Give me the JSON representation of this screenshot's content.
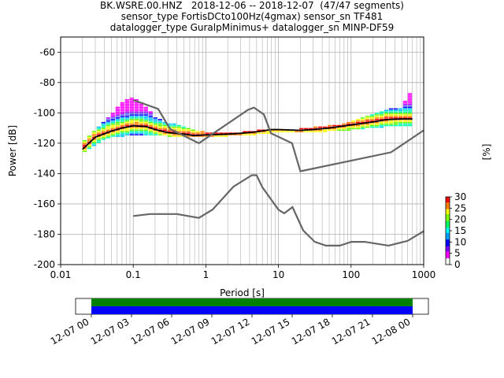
{
  "title": {
    "line1": "BK.WSRE.00.HNZ   2018-12-06 -- 2018-12-07  (47/47 segments)",
    "line2": "sensor_type FortisDCto100Hz(4gmax) sensor_sn TF481",
    "line3": "datalogger_type GuralpMinimus+ datalogger_sn MINP-DF59"
  },
  "chart_data": [
    {
      "type": "heatmap",
      "title": "BK.WSRE.00.HNZ   2018-12-06 -- 2018-12-07  (47/47 segments)",
      "xlabel": "Period [s]",
      "ylabel": "Power [dB]",
      "xscale": "log",
      "xlim": [
        0.01,
        1000
      ],
      "ylim": [
        -200,
        -50
      ],
      "xticks": [
        "0.01",
        "0.1",
        "1",
        "10",
        "100",
        "1000"
      ],
      "yticks": [
        "-60",
        "-80",
        "-100",
        "-120",
        "-140",
        "-160",
        "-180",
        "-200"
      ],
      "grid": true,
      "colorbar": {
        "label": "[%]",
        "range": [
          0,
          30
        ],
        "ticks": [
          "0",
          "5",
          "10",
          "15",
          "20",
          "25",
          "30"
        ],
        "colormap": "pqlx"
      },
      "series": [
        {
          "name": "",
          "style": "mode",
          "color": "#000000",
          "x": [
            0.02,
            0.03,
            0.05,
            0.07,
            0.1,
            0.15,
            0.2,
            0.3,
            0.5,
            0.7,
            1,
            2,
            3,
            5,
            8,
            10,
            20,
            30,
            50,
            100,
            200,
            300,
            500,
            700
          ],
          "y": [
            -124,
            -116,
            -112,
            -110,
            -108.5,
            -109,
            -111,
            -113,
            -114,
            -115,
            -114.5,
            -114,
            -113.5,
            -112.5,
            -111,
            -111,
            -111.5,
            -111,
            -110,
            -108,
            -106,
            -104.5,
            -104,
            -104
          ]
        },
        {
          "name": "",
          "style": "noise-model-high",
          "color": "#666666",
          "x": [
            0.1,
            0.22,
            0.32,
            0.8,
            3.8,
            4.6,
            6.3,
            7.9,
            15.4,
            20,
            354.8,
            1000
          ],
          "y": [
            -91.5,
            -97.4,
            -110.5,
            -120,
            -98,
            -96.5,
            -101,
            -113.5,
            -120,
            -138.5,
            -126,
            -111.5
          ]
        },
        {
          "name": "",
          "style": "noise-model-low",
          "color": "#666666",
          "x": [
            0.1,
            0.17,
            0.4,
            0.8,
            1.24,
            2.4,
            4.3,
            5,
            6,
            10,
            12,
            15.6,
            21.9,
            31.6,
            45,
            70,
            101,
            154,
            328,
            600,
            1000
          ],
          "y": [
            -168,
            -166.7,
            -166.7,
            -169.2,
            -163.7,
            -148.6,
            -141.1,
            -141.1,
            -149,
            -163.8,
            -166.2,
            -162.1,
            -177.5,
            -185,
            -187.5,
            -187.5,
            -185,
            -185,
            -187.5,
            -184.4,
            -178
          ]
        },
        {
          "name": "",
          "style": "histogram-band",
          "x": [
            0.02,
            0.03,
            0.04,
            0.05,
            0.06,
            0.07,
            0.08,
            0.09,
            0.1,
            0.12,
            0.15,
            0.2,
            0.3,
            0.4,
            0.5,
            0.7,
            1,
            2,
            3,
            5,
            8,
            10,
            20,
            30,
            50,
            70,
            100,
            150,
            200,
            300,
            400,
            500,
            700
          ],
          "y_low": [
            -126,
            -121,
            -117,
            -116,
            -116,
            -116,
            -115,
            -115,
            -115,
            -115,
            -115,
            -115,
            -115,
            -116,
            -116,
            -116,
            -116,
            -115,
            -115,
            -114,
            -113,
            -113,
            -113,
            -113,
            -112,
            -112,
            -111,
            -110,
            -110,
            -109,
            -109,
            -109,
            -109
          ],
          "y_high": [
            -120,
            -112,
            -106,
            -102,
            -97,
            -94,
            -92,
            -91,
            -90,
            -92,
            -96,
            -103,
            -107,
            -108,
            -110,
            -112,
            -113,
            -113,
            -113,
            -112,
            -111,
            -111,
            -111,
            -110,
            -109,
            -108,
            -106,
            -103,
            -101,
            -99,
            -97,
            -97,
            -85
          ]
        }
      ]
    },
    {
      "type": "timeline",
      "xlim": [
        "12-07 00",
        "12-08 00"
      ],
      "xticks": [
        "12-07 00",
        "12-07 03",
        "12-07 06",
        "12-07 09",
        "12-07 12",
        "12-07 15",
        "12-07 18",
        "12-07 21",
        "12-08 00"
      ],
      "coverage": [
        {
          "color": "#008000",
          "start": 0,
          "end": 1
        },
        {
          "color": "#0000ff",
          "start": 0,
          "end": 1
        }
      ]
    }
  ]
}
